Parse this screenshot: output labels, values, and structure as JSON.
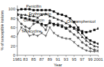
{
  "chart_data": {
    "type": "line",
    "x": [
      1981,
      1982,
      1983,
      1984,
      1985,
      1986,
      1987,
      1988,
      1989,
      1990,
      1991,
      1992,
      1993,
      1994,
      1995,
      1996,
      1997,
      1998,
      1999,
      2000,
      2001
    ],
    "series": [
      {
        "color": "#111111",
        "marker": "square",
        "line_style": "solid",
        "values": [
          98,
          100,
          100,
          100,
          98,
          98,
          98,
          98,
          98,
          95,
          90,
          88,
          85,
          80,
          72,
          60,
          48,
          38,
          32,
          28,
          25
        ]
      },
      {
        "color": "#333333",
        "marker": "triangle-up",
        "line_style": "solid",
        "values": [
          90,
          88,
          88,
          85,
          85,
          82,
          88,
          90,
          85,
          82,
          78,
          75,
          70,
          65,
          58,
          50,
          40,
          32,
          25,
          20,
          18
        ]
      },
      {
        "color": "#555555",
        "marker": "diamond",
        "line_style": "solid",
        "values": [
          78,
          68,
          62,
          58,
          68,
          72,
          65,
          55,
          75,
          65,
          68,
          65,
          60,
          52,
          45,
          38,
          28,
          22,
          15,
          12,
          10
        ]
      },
      {
        "color": "#111111",
        "marker": "square",
        "line_style": "dashed",
        "values": [
          88,
          82,
          80,
          78,
          75,
          72,
          68,
          65,
          70,
          68,
          65,
          62,
          58,
          62,
          60,
          55,
          52,
          50,
          52,
          55,
          58
        ]
      },
      {
        "color": "#666666",
        "marker": "triangle-down",
        "line_style": "solid",
        "values": [
          45,
          60,
          55,
          42,
          45,
          42,
          48,
          42,
          60,
          48,
          42,
          38,
          36,
          35,
          28,
          20,
          15,
          10,
          8,
          8,
          8
        ]
      }
    ],
    "xlabel": "Year",
    "ylabel": "% of susceptible isolates",
    "xlim": [
      1981,
      2001
    ],
    "xticks": [
      1981,
      {
        "value": 1983,
        "label": "83"
      },
      {
        "value": 1985,
        "label": "85"
      },
      {
        "value": 1987,
        "label": "87"
      },
      {
        "value": 1989,
        "label": "89"
      },
      {
        "value": 1991,
        "label": "91"
      },
      {
        "value": 1993,
        "label": "93"
      },
      {
        "value": 1995,
        "label": "95"
      },
      {
        "value": 1997,
        "label": "97"
      },
      {
        "value": 1999,
        "label": "99"
      },
      2001
    ],
    "ylim": [
      0,
      108
    ],
    "yticks": [
      0,
      20,
      40,
      60,
      80,
      100
    ],
    "annotations": [
      {
        "text": "Penicillin",
        "x": 1983.2,
        "y": 103
      },
      {
        "text": "Erythromycin",
        "x": 1983.8,
        "y": 87
      },
      {
        "text": "Clindamycin",
        "x": 1982.5,
        "y": 73
      },
      {
        "text": "Chloramphenicol",
        "x": 1993.2,
        "y": 70
      },
      {
        "text": "Tetracycline",
        "x": 1982.0,
        "y": 50
      }
    ]
  }
}
